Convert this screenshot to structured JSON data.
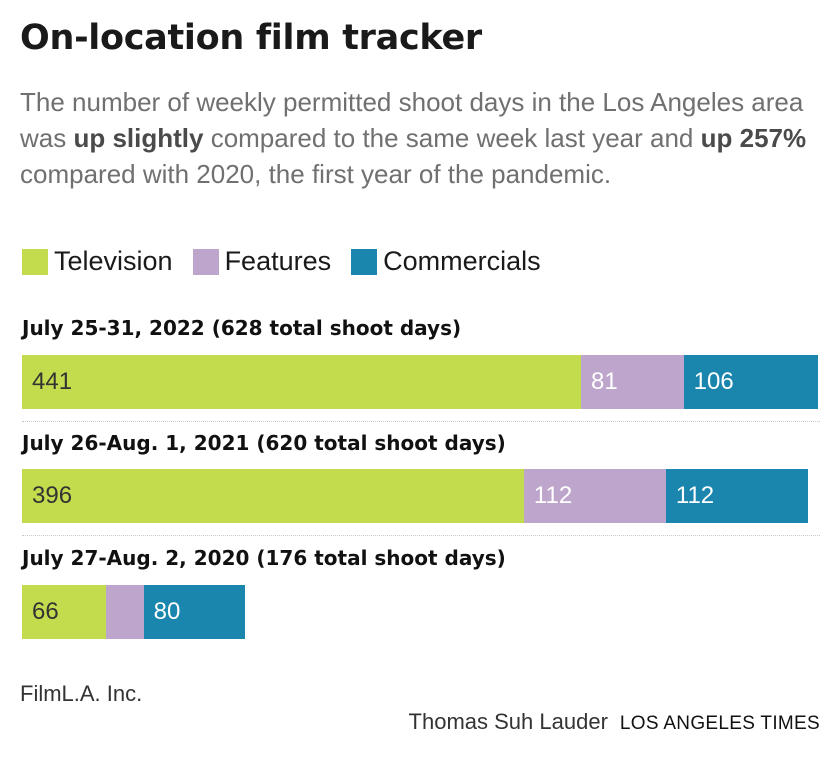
{
  "header": {
    "title": "On-location film tracker",
    "subtitle_parts": [
      "The number of weekly permitted shoot days in the Los Angeles area was ",
      "up slightly",
      " compared to the same week last year and ",
      "up 257%",
      " compared with 2020, the first year of the pandemic."
    ]
  },
  "legend": [
    {
      "name": "Television",
      "color": "#c3dc4d"
    },
    {
      "name": "Features",
      "color": "#bea5cc"
    },
    {
      "name": "Commercials",
      "color": "#1a85ad"
    }
  ],
  "chart_data": {
    "type": "bar",
    "orientation": "horizontal",
    "stacked": true,
    "categories": [
      "July 25-31, 2022 (628 total shoot days)",
      "July 26-Aug. 1, 2021 (620 total shoot days)",
      "July 27-Aug. 2, 2020 (176 total shoot days)"
    ],
    "series": [
      {
        "name": "Television",
        "values": [
          441,
          396,
          66
        ],
        "labels": [
          "441",
          "396",
          "66"
        ]
      },
      {
        "name": "Features",
        "values": [
          81,
          112,
          30
        ],
        "labels": [
          "81",
          "112",
          ""
        ]
      },
      {
        "name": "Commercials",
        "values": [
          106,
          112,
          80
        ],
        "labels": [
          "106",
          "112",
          "80"
        ]
      }
    ],
    "xlim": [
      0,
      628
    ],
    "grid": false,
    "legend_position": "top"
  },
  "footer": {
    "source": "FilmL.A. Inc.",
    "credit": "Thomas Suh Lauder",
    "outlet": "LOS ANGELES TIMES"
  }
}
